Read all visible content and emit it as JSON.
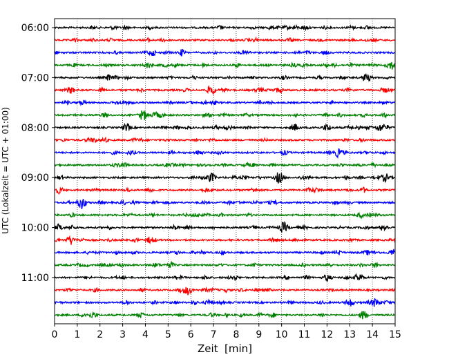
{
  "chart_data": {
    "type": "line",
    "chart_kind": "helicorder seismogram",
    "xlabel": "Zeit  [min]",
    "ylabel": "UTC (Lokalzeit = UTC + 01:00)",
    "xlim": [
      0,
      15
    ],
    "x_ticks": [
      0,
      1,
      2,
      3,
      4,
      5,
      6,
      7,
      8,
      9,
      10,
      11,
      12,
      13,
      14,
      15
    ],
    "x_tick_labels": [
      "0",
      "1",
      "2",
      "3",
      "4",
      "5",
      "6",
      "7",
      "8",
      "9",
      "10",
      "11",
      "12",
      "13",
      "14",
      "15"
    ],
    "y_tick_labels": [
      "06:00",
      "07:00",
      "08:00",
      "09:00",
      "10:00",
      "11:00"
    ],
    "y_tick_rows": [
      0,
      4,
      8,
      12,
      16,
      20
    ],
    "row_count": 24,
    "minutes_per_row": 15,
    "first_row_start": "06:00",
    "grid": "vertical dotted at each minute",
    "trace_colors": [
      "#000000",
      "#ff0000",
      "#0000ff",
      "#008000"
    ],
    "events": [
      {
        "row": 0,
        "minute": 7.3,
        "amplitude": 0.3
      },
      {
        "row": 3,
        "minute": 4.1,
        "amplitude": 0.4
      },
      {
        "row": 3,
        "minute": 14.8,
        "amplitude": 0.7
      },
      {
        "row": 4,
        "minute": 13.7,
        "amplitude": 0.5
      },
      {
        "row": 5,
        "minute": 0.7,
        "amplitude": 0.5
      },
      {
        "row": 5,
        "minute": 6.9,
        "amplitude": 0.7
      },
      {
        "row": 7,
        "minute": 3.9,
        "amplitude": 0.8
      },
      {
        "row": 7,
        "minute": 4.5,
        "amplitude": 0.4
      },
      {
        "row": 8,
        "minute": 3.2,
        "amplitude": 0.5
      },
      {
        "row": 8,
        "minute": 10.6,
        "amplitude": 0.5
      },
      {
        "row": 8,
        "minute": 12.0,
        "amplitude": 0.5
      },
      {
        "row": 8,
        "minute": 14.3,
        "amplitude": 0.5
      },
      {
        "row": 10,
        "minute": 12.5,
        "amplitude": 0.5
      },
      {
        "row": 11,
        "minute": 3.0,
        "amplitude": 0.4
      },
      {
        "row": 12,
        "minute": 6.9,
        "amplitude": 0.7
      },
      {
        "row": 12,
        "minute": 9.9,
        "amplitude": 0.8
      },
      {
        "row": 12,
        "minute": 14.6,
        "amplitude": 0.5
      },
      {
        "row": 13,
        "minute": 0.2,
        "amplitude": 0.5
      },
      {
        "row": 14,
        "minute": 1.2,
        "amplitude": 1.0
      },
      {
        "row": 16,
        "minute": 0.2,
        "amplitude": 0.5
      },
      {
        "row": 16,
        "minute": 10.1,
        "amplitude": 0.7
      },
      {
        "row": 16,
        "minute": 14.5,
        "amplitude": 0.5
      },
      {
        "row": 17,
        "minute": 0.7,
        "amplitude": 0.5
      },
      {
        "row": 18,
        "minute": 14.9,
        "amplitude": 0.5
      },
      {
        "row": 19,
        "minute": 5.1,
        "amplitude": 0.4
      },
      {
        "row": 20,
        "minute": 13.4,
        "amplitude": 0.6
      },
      {
        "row": 20,
        "minute": 12.0,
        "amplitude": 0.4
      },
      {
        "row": 21,
        "minute": 5.9,
        "amplitude": 0.5
      },
      {
        "row": 22,
        "minute": 13.0,
        "amplitude": 0.6
      },
      {
        "row": 22,
        "minute": 14.1,
        "amplitude": 0.6
      },
      {
        "row": 23,
        "minute": 13.6,
        "amplitude": 0.5
      },
      {
        "row": 23,
        "minute": 1.7,
        "amplitude": 0.4
      }
    ]
  }
}
